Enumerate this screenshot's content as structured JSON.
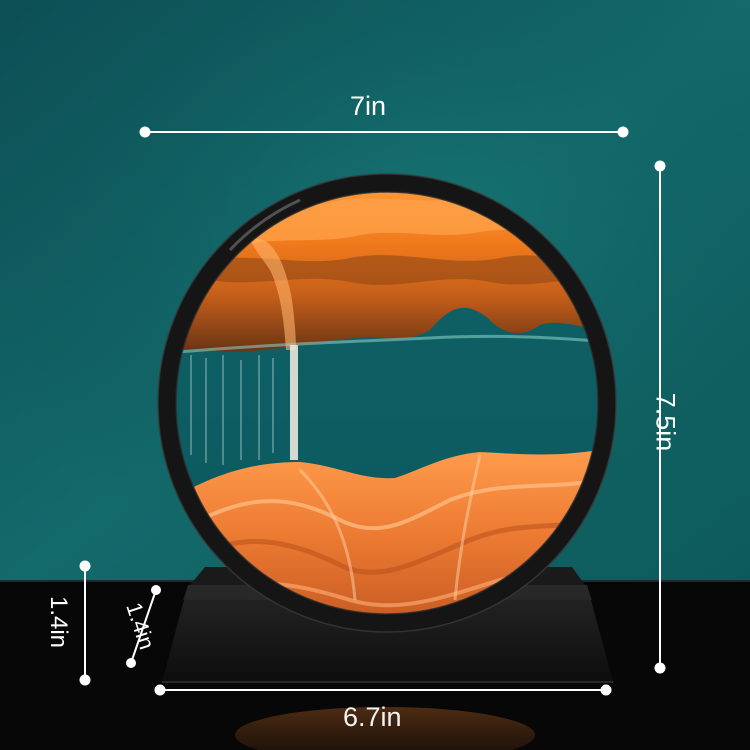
{
  "product": {
    "name": "Moving sand art round frame",
    "colors": {
      "background": "#0f5c5e",
      "surface": "#0a0a0a",
      "frame": "#141414",
      "sand_primary": "#f07a1c",
      "sand_highlight": "#ffb070",
      "annotation": "#ffffff"
    },
    "icons": [
      "ruler-dimension-icon"
    ]
  },
  "dimensions": {
    "width": "7in",
    "height": "7.5in",
    "base_width": "6.7in",
    "base_height": "1.4in",
    "base_depth": "1.4in"
  }
}
